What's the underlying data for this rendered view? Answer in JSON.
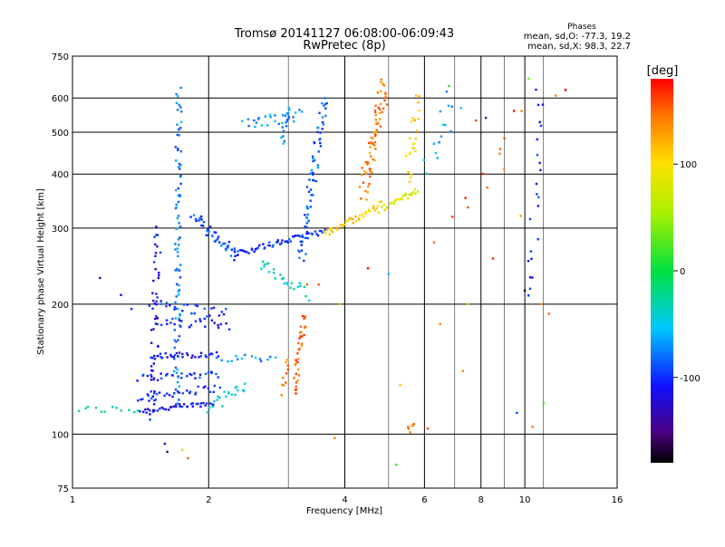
{
  "chart_data": {
    "type": "scatter",
    "title": "Tromsø 20141127 06:08:00-06:09:43",
    "subtitle": "RwPretec (8p)",
    "xlabel": "Frequency [MHz]",
    "ylabel": "Stationary phase Virtual Height [km]",
    "x_scale": "log",
    "y_scale": "log",
    "xlim": [
      1,
      16
    ],
    "ylim": [
      75,
      750
    ],
    "grid": true,
    "x_ticks": [
      1,
      2,
      4,
      6,
      8,
      10,
      16
    ],
    "x_tick_labels": [
      "1",
      "2",
      "4",
      "6",
      "8",
      "10",
      "16"
    ],
    "x_minor_gridlines": [
      3,
      5,
      7,
      9,
      11
    ],
    "y_ticks": [
      75,
      100,
      200,
      300,
      400,
      500,
      600,
      750
    ],
    "y_tick_labels": [
      "75",
      "100",
      "200",
      "300",
      "400",
      "500",
      "600",
      "750"
    ],
    "stats": {
      "heading": "Phases",
      "line1": "mean, sd,O: -77.3, 19.2",
      "line2": "mean, sd,X:  98.3, 22.7"
    },
    "colorbar": {
      "label": "[deg]",
      "range": [
        -180,
        180
      ],
      "ticks": [
        100,
        0,
        -100
      ],
      "tick_labels": [
        "100",
        "0",
        "-100"
      ],
      "colormap": "rainbow"
    },
    "traces": [
      {
        "f1": 1.03,
        "f2": 1.4,
        "h1": 114,
        "h2": 114,
        "n": 12,
        "phase": -20,
        "jit": 0.02
      },
      {
        "f1": 1.4,
        "f2": 2.05,
        "h1": 113,
        "h2": 118,
        "n": 40,
        "phase": -110,
        "jit": 0.015
      },
      {
        "f1": 1.4,
        "f2": 2.1,
        "h1": 122,
        "h2": 128,
        "n": 30,
        "phase": -105,
        "jit": 0.02
      },
      {
        "f1": 1.4,
        "f2": 2.1,
        "h1": 135,
        "h2": 138,
        "n": 30,
        "phase": -100,
        "jit": 0.02
      },
      {
        "f1": 1.5,
        "f2": 2.1,
        "h1": 152,
        "h2": 153,
        "n": 30,
        "phase": -110,
        "jit": 0.015
      },
      {
        "f1": 1.55,
        "f2": 2.2,
        "h1": 180,
        "h2": 180,
        "n": 25,
        "phase": -105,
        "jit": 0.03
      },
      {
        "f1": 1.5,
        "f2": 2.2,
        "h1": 200,
        "h2": 190,
        "n": 25,
        "phase": -95,
        "jit": 0.03
      },
      {
        "f1": 2.0,
        "f2": 2.4,
        "h1": 115,
        "h2": 130,
        "n": 20,
        "phase": -50,
        "jit": 0.03
      },
      {
        "f1": 2.1,
        "f2": 2.8,
        "h1": 150,
        "h2": 150,
        "n": 15,
        "phase": -70,
        "jit": 0.02
      },
      {
        "f1": 1.5,
        "f2": 1.55,
        "h1": 110,
        "h2": 300,
        "n": 50,
        "phase": -110,
        "jit": 0.04
      },
      {
        "f1": 1.7,
        "f2": 1.72,
        "h1": 120,
        "h2": 620,
        "n": 90,
        "phase": -75,
        "jit": 0.03
      },
      {
        "f1": 1.85,
        "f2": 2.3,
        "h1": 320,
        "h2": 260,
        "n": 45,
        "phase": -90,
        "jit": 0.03
      },
      {
        "f1": 2.3,
        "f2": 3.6,
        "h1": 262,
        "h2": 295,
        "n": 55,
        "phase": -100,
        "jit": 0.015
      },
      {
        "f1": 3.2,
        "f2": 3.6,
        "h1": 250,
        "h2": 600,
        "n": 70,
        "phase": -85,
        "jit": 0.04
      },
      {
        "f1": 2.4,
        "f2": 3.2,
        "h1": 520,
        "h2": 550,
        "n": 25,
        "phase": -65,
        "jit": 0.03
      },
      {
        "f1": 2.9,
        "f2": 3.0,
        "h1": 470,
        "h2": 580,
        "n": 15,
        "phase": -70,
        "jit": 0.02
      },
      {
        "f1": 2.6,
        "f2": 3.3,
        "h1": 250,
        "h2": 210,
        "n": 25,
        "phase": -35,
        "jit": 0.03
      },
      {
        "f1": 3.6,
        "f2": 4.8,
        "h1": 290,
        "h2": 340,
        "n": 40,
        "phase": 110,
        "jit": 0.02
      },
      {
        "f1": 4.8,
        "f2": 5.8,
        "h1": 330,
        "h2": 370,
        "n": 30,
        "phase": 80,
        "jit": 0.02
      },
      {
        "f1": 4.4,
        "f2": 4.9,
        "h1": 360,
        "h2": 640,
        "n": 70,
        "phase": 140,
        "jit": 0.05
      },
      {
        "f1": 5.5,
        "f2": 5.8,
        "h1": 390,
        "h2": 600,
        "n": 25,
        "phase": 105,
        "jit": 0.04
      },
      {
        "f1": 3.1,
        "f2": 3.25,
        "h1": 125,
        "h2": 190,
        "n": 35,
        "phase": 150,
        "jit": 0.025
      },
      {
        "f1": 2.9,
        "f2": 3.0,
        "h1": 125,
        "h2": 150,
        "n": 10,
        "phase": 140,
        "jit": 0.02
      },
      {
        "f1": 6.0,
        "f2": 7.0,
        "h1": 400,
        "h2": 600,
        "n": 15,
        "phase": -60,
        "jit": 0.08
      },
      {
        "f1": 10.3,
        "f2": 10.8,
        "h1": 200,
        "h2": 620,
        "n": 22,
        "phase": -100,
        "jit": 0.05
      },
      {
        "f1": 7.2,
        "f2": 9.5,
        "h1": 300,
        "h2": 560,
        "n": 10,
        "phase": 160,
        "jit": 0.1
      },
      {
        "f1": 5.5,
        "f2": 5.7,
        "h1": 102,
        "h2": 104,
        "n": 6,
        "phase": 140,
        "jit": 0.02
      }
    ],
    "scatter_points": [
      {
        "f": 1.15,
        "h": 230,
        "phase": -120
      },
      {
        "f": 1.28,
        "h": 210,
        "phase": -110
      },
      {
        "f": 1.35,
        "h": 195,
        "phase": -100
      },
      {
        "f": 1.6,
        "h": 95,
        "phase": -120
      },
      {
        "f": 1.62,
        "h": 91,
        "phase": -160
      },
      {
        "f": 1.75,
        "h": 92,
        "phase": 60
      },
      {
        "f": 1.8,
        "h": 88,
        "phase": 150
      },
      {
        "f": 2.4,
        "h": 265,
        "phase": -110
      },
      {
        "f": 3.3,
        "h": 222,
        "phase": 150
      },
      {
        "f": 3.5,
        "h": 222,
        "phase": 155
      },
      {
        "f": 3.9,
        "h": 200,
        "phase": 120
      },
      {
        "f": 3.8,
        "h": 98,
        "phase": 140
      },
      {
        "f": 4.5,
        "h": 242,
        "phase": 180
      },
      {
        "f": 5.0,
        "h": 235,
        "phase": -60
      },
      {
        "f": 5.3,
        "h": 130,
        "phase": 110
      },
      {
        "f": 5.2,
        "h": 85,
        "phase": 20
      },
      {
        "f": 6.1,
        "h": 103,
        "phase": 160
      },
      {
        "f": 6.3,
        "h": 278,
        "phase": 150
      },
      {
        "f": 6.5,
        "h": 180,
        "phase": 140
      },
      {
        "f": 7.3,
        "h": 140,
        "phase": 140
      },
      {
        "f": 7.5,
        "h": 200,
        "phase": 60
      },
      {
        "f": 7.8,
        "h": 532,
        "phase": 160
      },
      {
        "f": 8.5,
        "h": 255,
        "phase": 170
      },
      {
        "f": 9.0,
        "h": 410,
        "phase": 140
      },
      {
        "f": 9.8,
        "h": 320,
        "phase": 130
      },
      {
        "f": 9.6,
        "h": 112,
        "phase": -90
      },
      {
        "f": 10.0,
        "h": 215,
        "phase": -170
      },
      {
        "f": 10.2,
        "h": 665,
        "phase": 40
      },
      {
        "f": 10.9,
        "h": 200,
        "phase": 130
      },
      {
        "f": 11.0,
        "h": 118,
        "phase": 20
      },
      {
        "f": 11.3,
        "h": 190,
        "phase": 150
      },
      {
        "f": 11.7,
        "h": 608,
        "phase": 140
      },
      {
        "f": 12.3,
        "h": 626,
        "phase": 180
      },
      {
        "f": 6.8,
        "h": 640,
        "phase": 10
      },
      {
        "f": 8.2,
        "h": 540,
        "phase": -150
      },
      {
        "f": 10.4,
        "h": 104,
        "phase": 140
      }
    ]
  }
}
